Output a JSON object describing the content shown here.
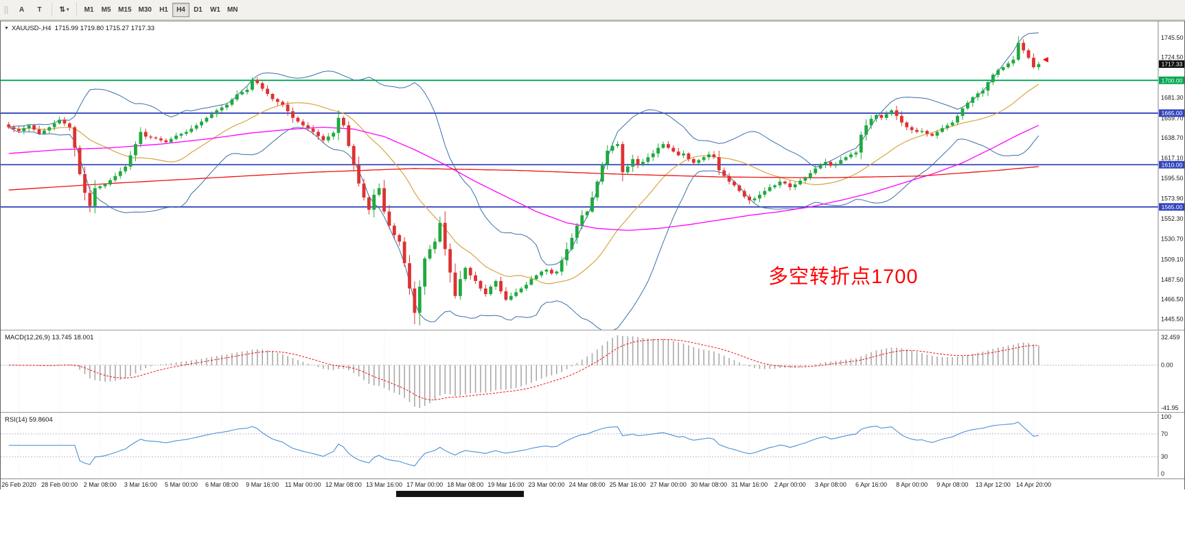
{
  "colors": {
    "bull": "#1fa93f",
    "bear": "#dd3232",
    "bands": "#3a6ea5",
    "ma_fast": "#d9a43e",
    "ma_mid": "#ff00ff",
    "ma_slow": "#ee1111",
    "macd_hist": "#a8a8a8",
    "macd_signal": "#ee1111",
    "rsi_line": "#4b8fd5",
    "grid": "#e3e3ee",
    "level_green": "#00a651",
    "level_blue": "#3344bb",
    "current_badge": "#101010",
    "axis_text": "#1a1a1a"
  },
  "toolbar": {
    "handle_glyph": "⣿",
    "button_a": "A",
    "button_t": "T",
    "scale_icon_glyph": "⇅",
    "caret_glyph": "▾",
    "timeframes": [
      "M1",
      "M5",
      "M15",
      "M30",
      "H1",
      "H4",
      "D1",
      "W1",
      "MN"
    ],
    "active_timeframe": "H4"
  },
  "chart": {
    "collapse_glyph": "▼",
    "legend": "XAUUSD-,H4  1715.99 1719.80 1715.27 1717.33",
    "annotation": "多空转折点1700",
    "current_price": "1717.33",
    "levels": [
      {
        "price": 1700.0,
        "label": "1700.00",
        "color": "#00a651"
      },
      {
        "price": 1665.0,
        "label": "1665.00",
        "color": "#3344bb"
      },
      {
        "price": 1610.0,
        "label": "1610.00",
        "color": "#3344bb"
      },
      {
        "price": 1565.0,
        "label": "1565.00",
        "color": "#3344bb"
      }
    ],
    "price_axis_labels": [
      "1745.50",
      "1724.50",
      "1681.30",
      "1659.70",
      "1638.70",
      "1617.10",
      "1595.50",
      "1573.90",
      "1552.30",
      "1530.70",
      "1509.10",
      "1487.50",
      "1466.50",
      "1445.50"
    ]
  },
  "chart_data": {
    "type": "candlestick",
    "symbol": "XAUUSD-",
    "timeframe": "H4",
    "n_candles": 204,
    "price_range": [
      1434,
      1763
    ],
    "closes_waypoints": [
      [
        0,
        1650
      ],
      [
        2,
        1646
      ],
      [
        4,
        1652
      ],
      [
        6,
        1643
      ],
      [
        8,
        1650
      ],
      [
        10,
        1658
      ],
      [
        12,
        1650
      ],
      [
        13,
        1628
      ],
      [
        14,
        1600
      ],
      [
        15,
        1580
      ],
      [
        16,
        1566
      ],
      [
        17,
        1585
      ],
      [
        19,
        1589
      ],
      [
        21,
        1598
      ],
      [
        23,
        1608
      ],
      [
        25,
        1632
      ],
      [
        26,
        1645
      ],
      [
        27,
        1640
      ],
      [
        29,
        1638
      ],
      [
        31,
        1634
      ],
      [
        33,
        1641
      ],
      [
        35,
        1645
      ],
      [
        37,
        1652
      ],
      [
        39,
        1660
      ],
      [
        41,
        1668
      ],
      [
        43,
        1674
      ],
      [
        45,
        1685
      ],
      [
        47,
        1690
      ],
      [
        48,
        1700
      ],
      [
        49,
        1697
      ],
      [
        50,
        1691
      ],
      [
        52,
        1680
      ],
      [
        54,
        1674
      ],
      [
        56,
        1660
      ],
      [
        58,
        1652
      ],
      [
        60,
        1645
      ],
      [
        62,
        1636
      ],
      [
        64,
        1644
      ],
      [
        65,
        1660
      ],
      [
        66,
        1652
      ],
      [
        67,
        1630
      ],
      [
        68,
        1610
      ],
      [
        69,
        1590
      ],
      [
        70,
        1575
      ],
      [
        71,
        1562
      ],
      [
        72,
        1578
      ],
      [
        73,
        1585
      ],
      [
        74,
        1560
      ],
      [
        75,
        1545
      ],
      [
        76,
        1535
      ],
      [
        77,
        1528
      ],
      [
        78,
        1505
      ],
      [
        79,
        1478
      ],
      [
        80,
        1452
      ],
      [
        81,
        1480
      ],
      [
        82,
        1510
      ],
      [
        83,
        1520
      ],
      [
        84,
        1528
      ],
      [
        85,
        1548
      ],
      [
        86,
        1520
      ],
      [
        87,
        1495
      ],
      [
        88,
        1470
      ],
      [
        89,
        1488
      ],
      [
        90,
        1500
      ],
      [
        91,
        1492
      ],
      [
        92,
        1486
      ],
      [
        93,
        1478
      ],
      [
        94,
        1472
      ],
      [
        95,
        1480
      ],
      [
        96,
        1486
      ],
      [
        97,
        1475
      ],
      [
        98,
        1466
      ],
      [
        99,
        1470
      ],
      [
        100,
        1474
      ],
      [
        101,
        1478
      ],
      [
        102,
        1482
      ],
      [
        103,
        1488
      ],
      [
        104,
        1492
      ],
      [
        105,
        1496
      ],
      [
        106,
        1498
      ],
      [
        107,
        1494
      ],
      [
        108,
        1496
      ],
      [
        109,
        1508
      ],
      [
        110,
        1520
      ],
      [
        111,
        1532
      ],
      [
        112,
        1545
      ],
      [
        113,
        1556
      ],
      [
        114,
        1560
      ],
      [
        115,
        1575
      ],
      [
        116,
        1592
      ],
      [
        117,
        1610
      ],
      [
        118,
        1625
      ],
      [
        119,
        1630
      ],
      [
        120,
        1632
      ],
      [
        121,
        1602
      ],
      [
        122,
        1608
      ],
      [
        123,
        1616
      ],
      [
        124,
        1610
      ],
      [
        125,
        1613
      ],
      [
        126,
        1618
      ],
      [
        127,
        1622
      ],
      [
        128,
        1628
      ],
      [
        129,
        1632
      ],
      [
        130,
        1628
      ],
      [
        131,
        1624
      ],
      [
        132,
        1620
      ],
      [
        133,
        1622
      ],
      [
        134,
        1616
      ],
      [
        135,
        1612
      ],
      [
        136,
        1615
      ],
      [
        137,
        1618
      ],
      [
        138,
        1621
      ],
      [
        139,
        1618
      ],
      [
        140,
        1604
      ],
      [
        141,
        1598
      ],
      [
        142,
        1592
      ],
      [
        143,
        1588
      ],
      [
        144,
        1582
      ],
      [
        145,
        1576
      ],
      [
        146,
        1572
      ],
      [
        147,
        1574
      ],
      [
        148,
        1578
      ],
      [
        149,
        1582
      ],
      [
        150,
        1586
      ],
      [
        151,
        1588
      ],
      [
        152,
        1592
      ],
      [
        153,
        1590
      ],
      [
        154,
        1586
      ],
      [
        155,
        1589
      ],
      [
        156,
        1593
      ],
      [
        157,
        1596
      ],
      [
        158,
        1601
      ],
      [
        159,
        1606
      ],
      [
        160,
        1610
      ],
      [
        161,
        1613
      ],
      [
        162,
        1609
      ],
      [
        163,
        1611
      ],
      [
        164,
        1615
      ],
      [
        165,
        1618
      ],
      [
        166,
        1621
      ],
      [
        167,
        1623
      ],
      [
        168,
        1642
      ],
      [
        169,
        1652
      ],
      [
        170,
        1659
      ],
      [
        171,
        1663
      ],
      [
        172,
        1660
      ],
      [
        173,
        1664
      ],
      [
        174,
        1668
      ],
      [
        175,
        1662
      ],
      [
        176,
        1655
      ],
      [
        177,
        1650
      ],
      [
        178,
        1647
      ],
      [
        179,
        1645
      ],
      [
        180,
        1646
      ],
      [
        181,
        1643
      ],
      [
        182,
        1641
      ],
      [
        183,
        1645
      ],
      [
        184,
        1649
      ],
      [
        185,
        1652
      ],
      [
        186,
        1655
      ],
      [
        187,
        1662
      ],
      [
        188,
        1670
      ],
      [
        189,
        1676
      ],
      [
        190,
        1682
      ],
      [
        191,
        1686
      ],
      [
        192,
        1689
      ],
      [
        193,
        1698
      ],
      [
        194,
        1706
      ],
      [
        195,
        1711
      ],
      [
        196,
        1714
      ],
      [
        197,
        1718
      ],
      [
        198,
        1722
      ],
      [
        199,
        1740
      ],
      [
        200,
        1732
      ],
      [
        201,
        1724
      ],
      [
        202,
        1714
      ],
      [
        203,
        1717.3
      ]
    ],
    "overlays": {
      "bollinger": {
        "period": 20,
        "deviation": 2
      },
      "ma_fast_period": 20,
      "ma_mid_waypoints": [
        [
          0,
          1622
        ],
        [
          10,
          1626
        ],
        [
          20,
          1628
        ],
        [
          30,
          1632
        ],
        [
          40,
          1638
        ],
        [
          48,
          1644
        ],
        [
          56,
          1648
        ],
        [
          62,
          1650
        ],
        [
          68,
          1648
        ],
        [
          74,
          1640
        ],
        [
          80,
          1626
        ],
        [
          86,
          1610
        ],
        [
          92,
          1592
        ],
        [
          98,
          1576
        ],
        [
          104,
          1560
        ],
        [
          110,
          1548
        ],
        [
          116,
          1542
        ],
        [
          122,
          1540
        ],
        [
          128,
          1542
        ],
        [
          134,
          1546
        ],
        [
          140,
          1551
        ],
        [
          146,
          1556
        ],
        [
          152,
          1560
        ],
        [
          158,
          1565
        ],
        [
          164,
          1572
        ],
        [
          170,
          1580
        ],
        [
          176,
          1590
        ],
        [
          182,
          1600
        ],
        [
          188,
          1612
        ],
        [
          194,
          1628
        ],
        [
          199,
          1642
        ],
        [
          203,
          1652
        ]
      ],
      "ma_slow_waypoints": [
        [
          0,
          1583
        ],
        [
          20,
          1590
        ],
        [
          40,
          1596
        ],
        [
          60,
          1602
        ],
        [
          80,
          1606
        ],
        [
          100,
          1604
        ],
        [
          120,
          1600
        ],
        [
          140,
          1597
        ],
        [
          160,
          1596
        ],
        [
          180,
          1598
        ],
        [
          195,
          1604
        ],
        [
          203,
          1608
        ]
      ]
    },
    "time_labels": [
      "26 Feb 2020",
      "28 Feb 00:00",
      "2 Mar 08:00",
      "3 Mar 16:00",
      "5 Mar 00:00",
      "6 Mar 08:00",
      "9 Mar 16:00",
      "11 Mar 00:00",
      "12 Mar 08:00",
      "13 Mar 16:00",
      "17 Mar 00:00",
      "18 Mar 08:00",
      "19 Mar 16:00",
      "23 Mar 00:00",
      "24 Mar 08:00",
      "25 Mar 16:00",
      "27 Mar 00:00",
      "30 Mar 08:00",
      "31 Mar 16:00",
      "2 Apr 00:00",
      "3 Apr 08:00",
      "6 Apr 16:00",
      "8 Apr 00:00",
      "9 Apr 08:00",
      "13 Apr 12:00",
      "14 Apr 20:00"
    ]
  },
  "macd": {
    "label": "MACD(12,26,9) 13.745 18.001",
    "params": {
      "fast": 12,
      "slow": 26,
      "signal": 9
    },
    "axis": {
      "max": "32.459",
      "zero": "0.00",
      "min": "-41.95"
    }
  },
  "rsi": {
    "label": "RSI(14) 59.8604",
    "period": 14,
    "axis": [
      "100",
      "70",
      "30",
      "0"
    ],
    "levels": [
      70,
      30
    ]
  }
}
